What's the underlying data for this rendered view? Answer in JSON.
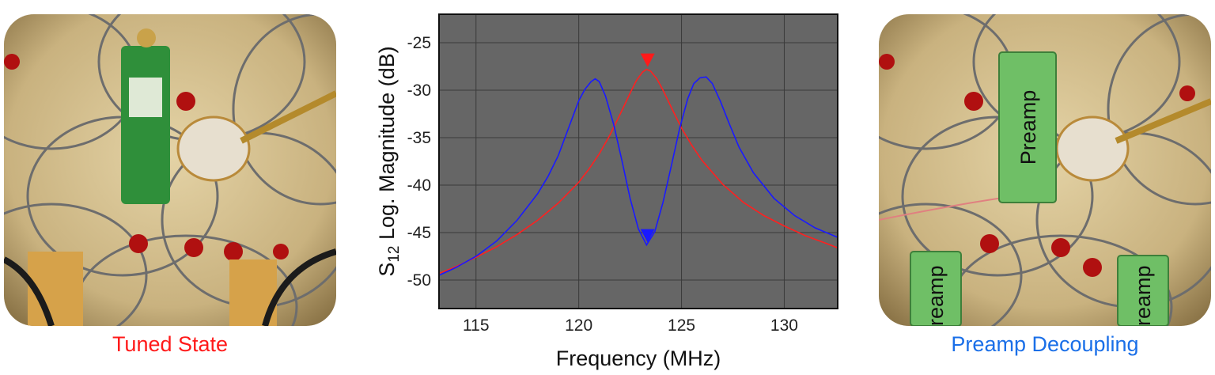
{
  "captions": {
    "left": "Tuned State",
    "right": "Preamp Decoupling"
  },
  "photo_right": {
    "preamp_label": "Preamp",
    "preamp_label_cut_1": "reamp",
    "preamp_label_cut_2": "reamp"
  },
  "chart_data": {
    "type": "line",
    "title": "",
    "xlabel": "Frequency (MHz)",
    "ylabel_main": "S",
    "ylabel_sub": "12",
    "ylabel_rest": " Log. Magnitude (dB)",
    "xlim": [
      113.2,
      132.6
    ],
    "ylim": [
      -53,
      -22
    ],
    "xticks": [
      115,
      120,
      125,
      130
    ],
    "yticks": [
      -25,
      -30,
      -35,
      -40,
      -45,
      -50
    ],
    "grid": true,
    "background": "#666666",
    "series": [
      {
        "color": "#ff2020",
        "x": [
          113.2,
          114,
          115,
          116,
          117,
          118,
          119,
          120,
          120.5,
          121,
          121.5,
          122,
          122.5,
          122.8,
          123.1,
          123.3,
          123.5,
          123.8,
          124.1,
          124.5,
          125,
          125.5,
          126,
          127,
          128,
          129,
          130,
          131,
          132,
          132.6
        ],
        "y": [
          -49.3,
          -48.6,
          -47.6,
          -46.5,
          -45.2,
          -43.7,
          -41.9,
          -39.7,
          -38.3,
          -36.7,
          -34.8,
          -32.6,
          -30.3,
          -29.0,
          -28.1,
          -27.8,
          -28.0,
          -28.8,
          -30.0,
          -31.8,
          -34.0,
          -35.8,
          -37.4,
          -39.9,
          -41.8,
          -43.2,
          -44.3,
          -45.3,
          -46.1,
          -46.6
        ]
      },
      {
        "color": "#1a1aff",
        "x": [
          113.2,
          114,
          115,
          116,
          117,
          118,
          118.5,
          119,
          119.5,
          120,
          120.3,
          120.6,
          120.8,
          121.0,
          121.3,
          121.7,
          122.1,
          122.5,
          122.9,
          123.3,
          123.7,
          124.1,
          124.5,
          124.9,
          125.3,
          125.6,
          125.9,
          126.2,
          126.5,
          126.9,
          127.3,
          127.8,
          128.5,
          129.5,
          130.5,
          131.5,
          132.6
        ],
        "y": [
          -49.5,
          -48.7,
          -47.5,
          -45.9,
          -43.7,
          -40.9,
          -39.1,
          -36.9,
          -34.0,
          -31.1,
          -29.9,
          -29.1,
          -28.8,
          -29.1,
          -30.6,
          -33.6,
          -37.4,
          -41.4,
          -44.6,
          -46.3,
          -44.9,
          -41.8,
          -38.0,
          -34.1,
          -30.9,
          -29.3,
          -28.7,
          -28.6,
          -29.3,
          -31.2,
          -33.4,
          -36.0,
          -38.7,
          -41.4,
          -43.2,
          -44.5,
          -45.5
        ]
      }
    ],
    "markers": [
      {
        "x": 123.35,
        "y": -27.8,
        "color": "#ff1a1a",
        "direction": "down"
      },
      {
        "x": 123.35,
        "y": -46.3,
        "color": "#1a1aff",
        "direction": "down"
      }
    ]
  }
}
